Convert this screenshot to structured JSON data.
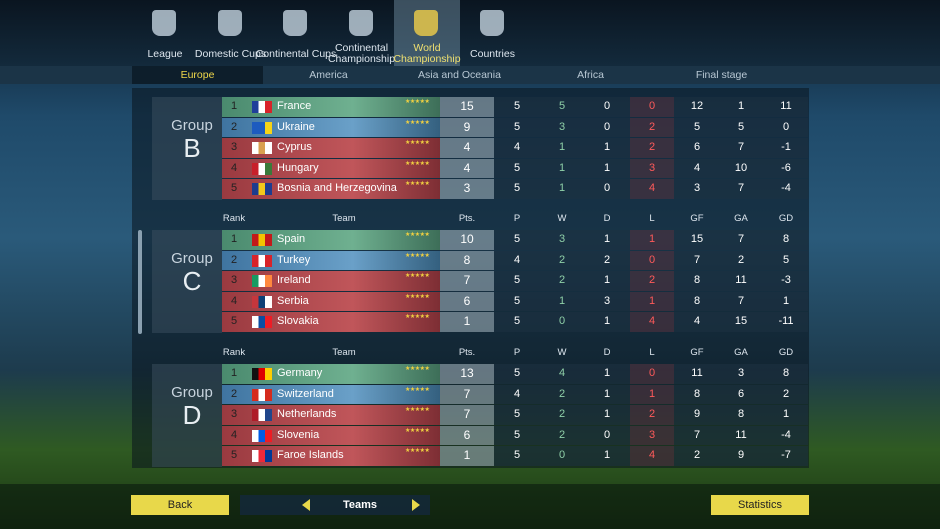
{
  "tabs": [
    "League",
    "Domestic Cups",
    "Continental Cups",
    "Continental Championship",
    "World Championship",
    "Countries"
  ],
  "subtabs": [
    "Europe",
    "America",
    "Asia and Oceania",
    "Africa",
    "Final stage"
  ],
  "columns": [
    "Rank",
    "Team",
    "Pts.",
    "P",
    "W",
    "D",
    "L",
    "GF",
    "GA",
    "GD"
  ],
  "groups": [
    {
      "label": "Group",
      "letter": "B",
      "rows": [
        [
          1,
          "France",
          15,
          5,
          5,
          0,
          0,
          12,
          1,
          11
        ],
        [
          2,
          "Ukraine",
          9,
          5,
          3,
          0,
          2,
          5,
          5,
          0
        ],
        [
          3,
          "Cyprus",
          4,
          4,
          1,
          1,
          2,
          6,
          7,
          -1
        ],
        [
          4,
          "Hungary",
          4,
          5,
          1,
          1,
          3,
          4,
          10,
          -6
        ],
        [
          5,
          "Bosnia and Herzegovina",
          3,
          5,
          1,
          0,
          4,
          3,
          7,
          -4
        ]
      ]
    },
    {
      "label": "Group",
      "letter": "C",
      "rows": [
        [
          1,
          "Spain",
          10,
          5,
          3,
          1,
          1,
          15,
          7,
          8
        ],
        [
          2,
          "Turkey",
          8,
          4,
          2,
          2,
          0,
          7,
          2,
          5
        ],
        [
          3,
          "Ireland",
          7,
          5,
          2,
          1,
          2,
          8,
          11,
          -3
        ],
        [
          4,
          "Serbia",
          6,
          5,
          1,
          3,
          1,
          8,
          7,
          1
        ],
        [
          5,
          "Slovakia",
          1,
          5,
          0,
          1,
          4,
          4,
          15,
          -11
        ]
      ]
    },
    {
      "label": "Group",
      "letter": "D",
      "rows": [
        [
          1,
          "Germany",
          13,
          5,
          4,
          1,
          0,
          11,
          3,
          8
        ],
        [
          2,
          "Switzerland",
          7,
          4,
          2,
          1,
          1,
          8,
          6,
          2
        ],
        [
          3,
          "Netherlands",
          7,
          5,
          2,
          1,
          2,
          9,
          8,
          1
        ],
        [
          4,
          "Slovenia",
          6,
          5,
          2,
          0,
          3,
          7,
          11,
          -4
        ],
        [
          5,
          "Faroe Islands",
          1,
          5,
          0,
          1,
          4,
          2,
          9,
          -7
        ]
      ]
    }
  ],
  "footer": {
    "back": "Back",
    "center": "Teams",
    "statistics": "Statistics"
  }
}
